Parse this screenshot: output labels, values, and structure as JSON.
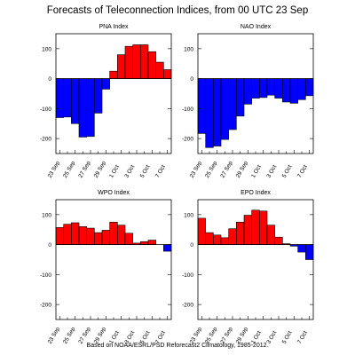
{
  "title": "Forecasts of Teleconnection Indices, from 00 UTC 23 Sep",
  "footer": "Based on NOAA/ESRL/PSD Reforecast2 Climatology, 1985-2012.",
  "colors": {
    "positive": "#ff0000",
    "negative": "#0000ff",
    "outline": "#000000"
  },
  "chart_data": [
    {
      "type": "bar",
      "title": "PNA Index",
      "categories": [
        "23 Sep",
        "24 Sep",
        "25 Sep",
        "26 Sep",
        "27 Sep",
        "28 Sep",
        "29 Sep",
        "30 Sep",
        "1 Oct",
        "2 Oct",
        "3 Oct",
        "4 Oct",
        "5 Oct",
        "6 Oct",
        "7 Oct"
      ],
      "tick_labels": [
        "23 Sep",
        "25 Sep",
        "27 Sep",
        "29 Sep",
        "1 Oct",
        "3 Oct",
        "5 Oct",
        "7 Oct"
      ],
      "values": [
        -130,
        -128,
        -150,
        -195,
        -193,
        -115,
        -35,
        25,
        80,
        108,
        113,
        113,
        90,
        55,
        30
      ],
      "ylim": [
        -250,
        150
      ],
      "yticks": [
        -200,
        -100,
        0,
        100
      ],
      "grid": false
    },
    {
      "type": "bar",
      "title": "NAO Index",
      "categories": [
        "23 Sep",
        "24 Sep",
        "25 Sep",
        "26 Sep",
        "27 Sep",
        "28 Sep",
        "29 Sep",
        "30 Sep",
        "1 Oct",
        "2 Oct",
        "3 Oct",
        "4 Oct",
        "5 Oct",
        "6 Oct",
        "7 Oct"
      ],
      "tick_labels": [
        "23 Sep",
        "25 Sep",
        "27 Sep",
        "29 Sep",
        "1 Oct",
        "3 Oct",
        "5 Oct",
        "7 Oct"
      ],
      "values": [
        -183,
        -230,
        -225,
        -203,
        -170,
        -125,
        -85,
        -65,
        -63,
        -55,
        -65,
        -78,
        -82,
        -70,
        -57
      ],
      "ylim": [
        -250,
        150
      ],
      "yticks": [
        -200,
        -100,
        0,
        100
      ],
      "grid": false
    },
    {
      "type": "bar",
      "title": "WPO Index",
      "categories": [
        "23 Sep",
        "24 Sep",
        "25 Sep",
        "26 Sep",
        "27 Sep",
        "28 Sep",
        "29 Sep",
        "30 Sep",
        "1 Oct",
        "2 Oct",
        "3 Oct",
        "4 Oct",
        "5 Oct",
        "6 Oct",
        "7 Oct"
      ],
      "tick_labels": [
        "23 Sep",
        "25 Sep",
        "27 Sep",
        "29 Sep",
        "1 Oct",
        "3 Oct",
        "5 Oct",
        "7 Oct"
      ],
      "values": [
        57,
        68,
        73,
        60,
        55,
        40,
        48,
        75,
        65,
        38,
        5,
        10,
        15,
        0,
        -22
      ],
      "ylim": [
        -250,
        150
      ],
      "yticks": [
        -200,
        -100,
        0,
        100
      ],
      "grid": false
    },
    {
      "type": "bar",
      "title": "EPO Index",
      "categories": [
        "23 Sep",
        "24 Sep",
        "25 Sep",
        "26 Sep",
        "27 Sep",
        "28 Sep",
        "29 Sep",
        "30 Sep",
        "1 Oct",
        "2 Oct",
        "3 Oct",
        "4 Oct",
        "5 Oct",
        "6 Oct",
        "7 Oct"
      ],
      "tick_labels": [
        "23 Sep",
        "25 Sep",
        "27 Sep",
        "29 Sep",
        "1 Oct",
        "3 Oct",
        "5 Oct",
        "7 Oct"
      ],
      "values": [
        88,
        40,
        32,
        23,
        53,
        75,
        98,
        115,
        112,
        65,
        25,
        3,
        -5,
        -25,
        -50
      ],
      "ylim": [
        -250,
        150
      ],
      "yticks": [
        -200,
        -100,
        0,
        100
      ],
      "grid": false
    }
  ]
}
